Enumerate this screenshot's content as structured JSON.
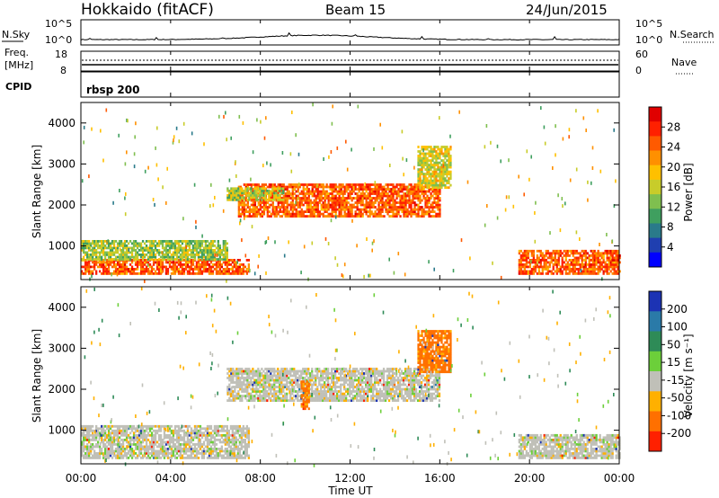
{
  "header": {
    "title": "Hokkaido (fitACF)",
    "beam": "Beam 15",
    "date": "24/Jun/2015"
  },
  "noise_panel": {
    "left_label": "N.Sky",
    "left_ticks": [
      "10^5",
      "10^0"
    ],
    "right_ticks": [
      "10^5",
      "10^0"
    ],
    "right_label": "N.Search"
  },
  "freq_panel": {
    "left_label_1": "Freq.",
    "left_label_2": "[MHz]",
    "left_ticks": [
      "18",
      "8"
    ],
    "right_ticks": [
      "60",
      "0"
    ],
    "right_label": "Nave"
  },
  "cpid_panel": {
    "label": "CPID",
    "program": "rbsp 200"
  },
  "power_panel": {
    "ylabel": "Slant Range [km]",
    "yticks": [
      "4000",
      "3000",
      "2000",
      "1000"
    ],
    "colorbar_label": "Power [dB]",
    "colorbar_ticks": [
      "28",
      "24",
      "20",
      "16",
      "12",
      "8",
      "4"
    ],
    "colors": [
      "#0000ff",
      "#1f3fb0",
      "#2a7a8a",
      "#3f9f5f",
      "#7fbf4f",
      "#c8cc2a",
      "#ffc000",
      "#ff9000",
      "#ff5a00",
      "#ff2000",
      "#e00000"
    ]
  },
  "velocity_panel": {
    "ylabel": "Slant Range [km]",
    "yticks": [
      "4000",
      "3000",
      "2000",
      "1000"
    ],
    "colorbar_label": "Velocity [m s⁻¹]",
    "colorbar_ticks": [
      "200",
      "100",
      "50",
      "15",
      "-15",
      "-50",
      "-100",
      "-200"
    ],
    "colors": [
      "#1c33b4",
      "#2a7aa8",
      "#2e8b57",
      "#6ccf3a",
      "#c0c0b8",
      "#ffb000",
      "#ff7000",
      "#ff2000"
    ]
  },
  "x_axis": {
    "ticks": [
      "00:00",
      "04:00",
      "08:00",
      "12:00",
      "16:00",
      "20:00",
      "00:00"
    ],
    "label": "Time UT"
  },
  "chart_data": [
    {
      "type": "heatmap",
      "title": "",
      "xlabel": "Time UT",
      "ylabel": "Slant Range [km]",
      "xlim": [
        0,
        24
      ],
      "ylim": [
        180,
        4500
      ],
      "colorbar": "Power [dB]",
      "zlim": [
        0,
        30
      ],
      "features": [
        {
          "t": [
            0,
            7.5
          ],
          "range": [
            300,
            650
          ],
          "level": 24
        },
        {
          "t": [
            0,
            6.5
          ],
          "range": [
            650,
            1100
          ],
          "level": 13
        },
        {
          "t": [
            7,
            16
          ],
          "range": [
            1700,
            2500
          ],
          "level": 24
        },
        {
          "t": [
            15,
            16.5
          ],
          "range": [
            2400,
            3400
          ],
          "level": 16
        },
        {
          "t": [
            19.5,
            24
          ],
          "range": [
            300,
            900
          ],
          "level": 24
        },
        {
          "t": [
            6.5,
            9
          ],
          "range": [
            2100,
            2400
          ],
          "level": 14
        }
      ]
    },
    {
      "type": "heatmap",
      "title": "",
      "xlabel": "Time UT",
      "ylabel": "Slant Range [km]",
      "xlim": [
        0,
        24
      ],
      "ylim": [
        180,
        4500
      ],
      "colorbar": "Velocity [m s⁻¹]",
      "zlim": [
        -200,
        200
      ],
      "features": [
        {
          "t": [
            0,
            7.5
          ],
          "range": [
            300,
            1100
          ],
          "level": 0
        },
        {
          "t": [
            6.5,
            16
          ],
          "range": [
            1700,
            2500
          ],
          "level": 0
        },
        {
          "t": [
            15,
            16.5
          ],
          "range": [
            2400,
            3400
          ],
          "level": -50
        },
        {
          "t": [
            9.8,
            10.2
          ],
          "range": [
            1500,
            2200
          ],
          "level": -50
        },
        {
          "t": [
            19.5,
            24
          ],
          "range": [
            300,
            900
          ],
          "level": 0
        }
      ]
    }
  ]
}
